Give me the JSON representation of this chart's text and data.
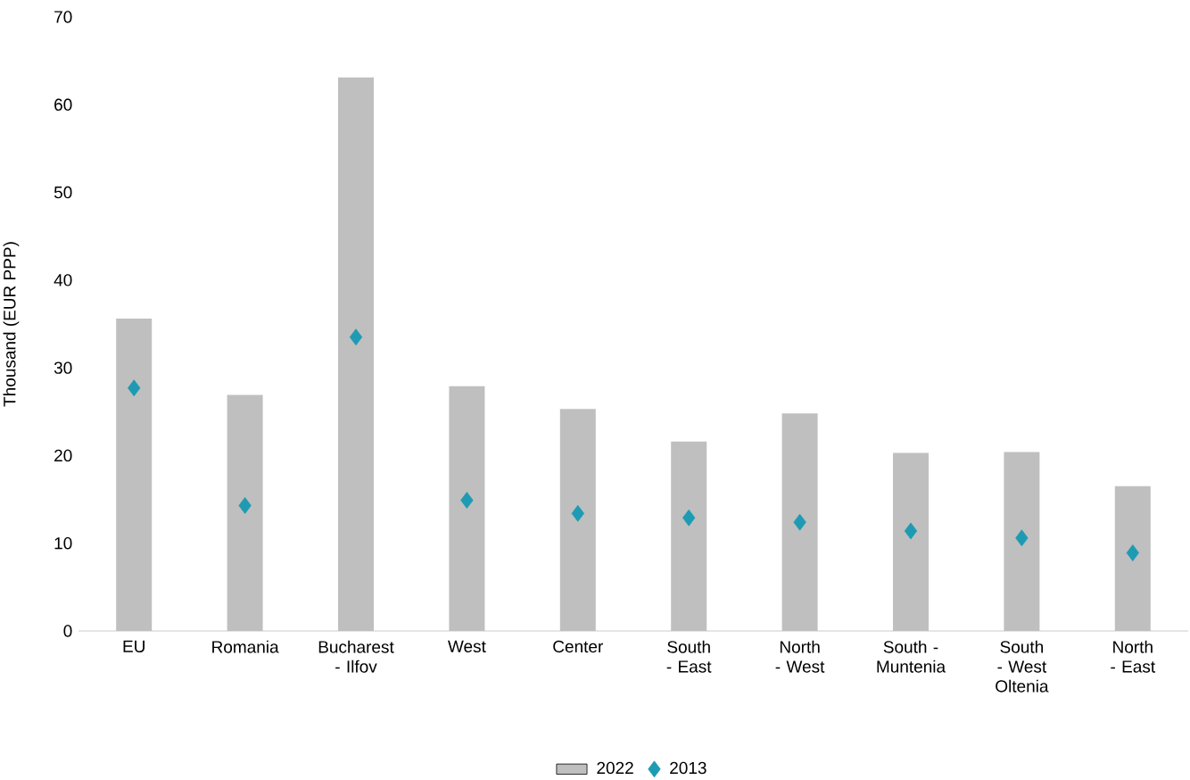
{
  "chart_data": {
    "type": "bar",
    "ylabel": "Thousand (EUR PPP)",
    "categories": [
      "EU",
      "Romania",
      "Bucharest - Ilfov",
      "West",
      "Center",
      "South - East",
      "North - West",
      "South - Muntenia",
      "South - West Oltenia",
      "North - East"
    ],
    "series": [
      {
        "name": "2022",
        "type": "bar",
        "color": "#bfbfbf",
        "values": [
          35.6,
          26.9,
          63.1,
          27.9,
          25.3,
          21.6,
          24.8,
          20.3,
          20.4,
          16.5
        ]
      },
      {
        "name": "2013",
        "type": "scatter",
        "marker": "diamond",
        "color": "#1e9bb3",
        "values": [
          27.7,
          14.3,
          33.5,
          14.9,
          13.4,
          12.9,
          12.4,
          11.4,
          10.6,
          8.9
        ]
      }
    ],
    "ylim": [
      0,
      70
    ],
    "yticks": [
      0,
      10,
      20,
      30,
      40,
      50,
      60,
      70
    ],
    "grid": false,
    "legend": "bottom"
  }
}
